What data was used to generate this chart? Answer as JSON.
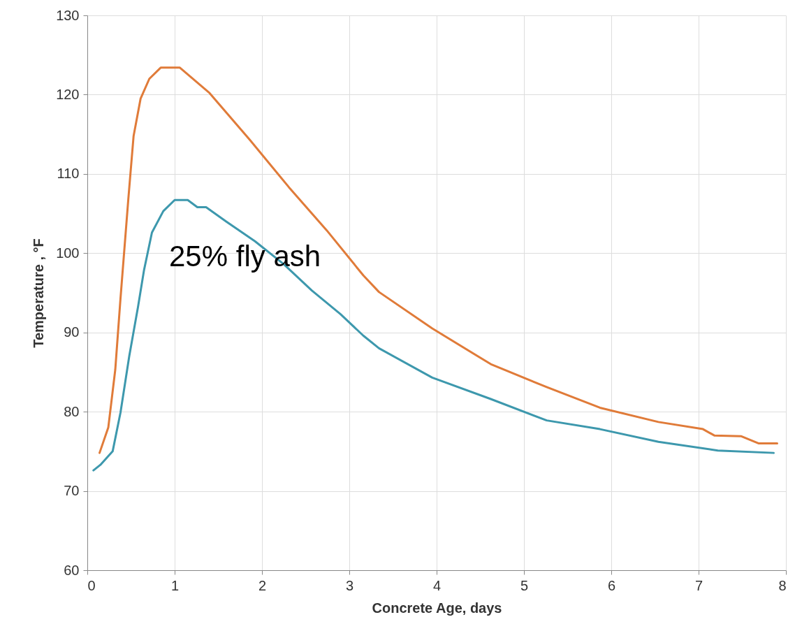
{
  "chart_data": {
    "type": "line",
    "xlabel": "Concrete Age, days",
    "ylabel": "Temperature , °F",
    "xlim": [
      0,
      8
    ],
    "xticks": [
      0,
      1,
      2,
      3,
      4,
      5,
      6,
      7,
      8
    ],
    "ylim": [
      60,
      130
    ],
    "yticks": [
      60,
      70,
      80,
      90,
      100,
      110,
      120,
      130
    ],
    "grid": true,
    "annotations": [
      "25% fly ash"
    ],
    "series": [
      {
        "color": "#e07b39",
        "x": [
          0.14,
          0.24,
          0.32,
          0.38,
          0.47,
          0.53,
          0.61,
          0.71,
          0.84,
          1.06,
          1.4,
          1.86,
          2.31,
          2.74,
          3.16,
          3.34,
          3.95,
          4.62,
          5.26,
          5.87,
          6.54,
          7.05,
          7.18,
          7.49,
          7.69,
          7.9
        ],
        "values": [
          74.8,
          78.0,
          85.3,
          94.3,
          106.9,
          114.8,
          119.5,
          122.0,
          123.4,
          123.4,
          120.2,
          114.3,
          108.3,
          102.9,
          97.2,
          95.1,
          90.5,
          86.0,
          83.1,
          80.5,
          78.7,
          77.8,
          77.0,
          76.9,
          76.0,
          76.0
        ]
      },
      {
        "color": "#3d98ad",
        "x": [
          0.07,
          0.15,
          0.29,
          0.38,
          0.48,
          0.58,
          0.65,
          0.74,
          0.87,
          1.0,
          1.15,
          1.26,
          1.36,
          1.59,
          1.92,
          2.25,
          2.57,
          2.9,
          3.16,
          3.34,
          3.95,
          4.62,
          5.26,
          5.87,
          6.54,
          7.22,
          7.86
        ],
        "values": [
          72.6,
          73.3,
          75.0,
          79.9,
          87.0,
          93.2,
          97.9,
          102.6,
          105.3,
          106.7,
          106.7,
          105.8,
          105.8,
          104.0,
          101.5,
          98.6,
          95.3,
          92.3,
          89.6,
          88.0,
          84.3,
          81.6,
          78.9,
          77.8,
          76.2,
          75.1,
          74.8
        ]
      }
    ]
  }
}
